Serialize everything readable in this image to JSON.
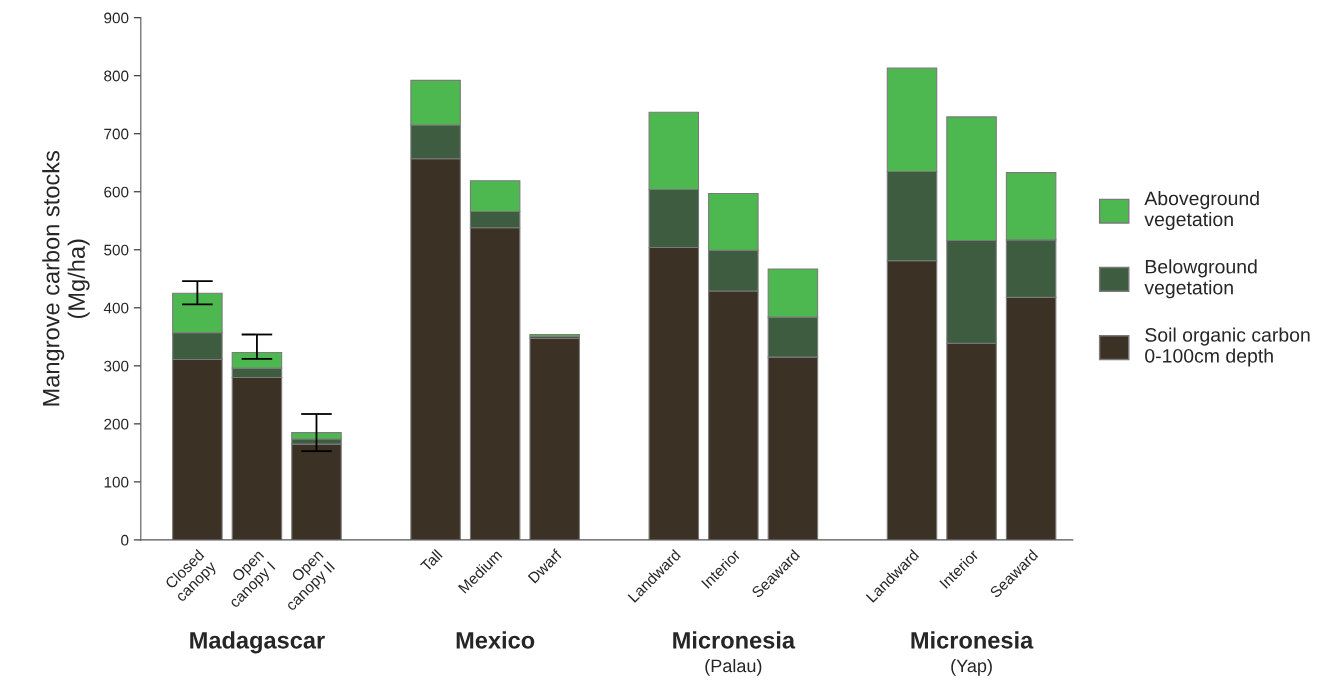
{
  "chart_data": {
    "type": "bar",
    "stacked": true,
    "ylabel": "Mangrove carbon stocks\n(Mg/ha)",
    "categories": [
      "Closed\ncanopy",
      "Open\ncanopy I",
      "Open\ncanopy II",
      null,
      "Tall",
      "Medium",
      "Dwarf",
      null,
      "Landward",
      "Interior",
      "Seaward",
      null,
      "Landward",
      "Interior",
      "Seaward"
    ],
    "series": [
      {
        "name": "Soil organic carbon\n0-100cm depth",
        "color": "#3b3125",
        "values": [
          311,
          280,
          165,
          null,
          657,
          538,
          347,
          null,
          504,
          429,
          315,
          null,
          481,
          339,
          418
        ]
      },
      {
        "name": "Belowground\nvegetation",
        "color": "#3d5c40",
        "values": [
          46,
          16,
          9,
          null,
          58,
          28,
          4,
          null,
          100,
          70,
          69,
          null,
          154,
          177,
          99
        ]
      },
      {
        "name": "Aboveground\nvegetation",
        "color": "#4cb84f",
        "values": [
          68,
          27,
          11,
          null,
          77,
          53,
          3,
          null,
          133,
          98,
          83,
          null,
          178,
          213,
          116
        ],
        "errors": [
          [
            406,
            446
          ],
          [
            312,
            354
          ],
          [
            153,
            217
          ],
          null,
          null,
          null,
          null,
          null,
          null,
          null,
          null,
          null,
          null,
          null,
          null
        ]
      }
    ],
    "ylim": [
      0,
      900
    ],
    "yticks": [
      0,
      100,
      200,
      300,
      400,
      500,
      600,
      700,
      800,
      900
    ],
    "grid": false,
    "legend": "right",
    "annotations": [
      "Madagascar",
      "Mexico",
      "Micronesia\n(Palau)",
      "Micronesia\n(Yap)"
    ]
  }
}
